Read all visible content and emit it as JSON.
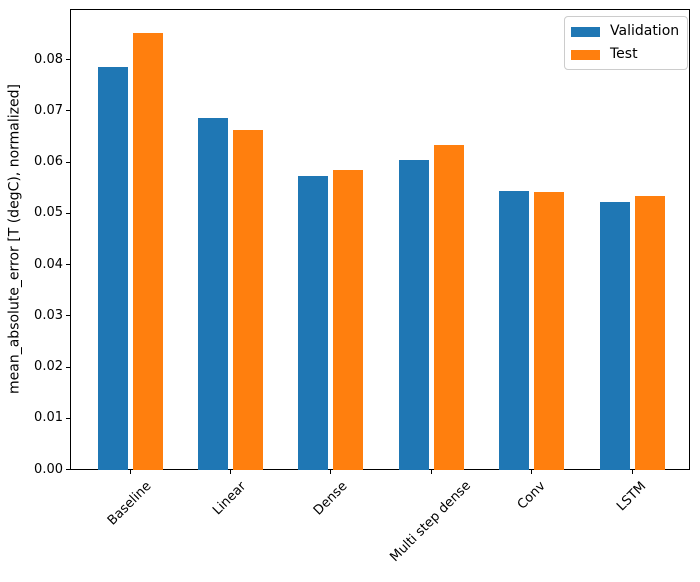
{
  "chart_data": {
    "type": "bar",
    "title": "",
    "xlabel": "",
    "ylabel": "mean_absolute_error [T (degC), normalized]",
    "categories": [
      "Baseline",
      "Linear",
      "Dense",
      "Multi step dense",
      "Conv",
      "LSTM"
    ],
    "series": [
      {
        "name": "Validation",
        "color": "#1f77b4",
        "values": [
          0.0786,
          0.0688,
          0.0573,
          0.0605,
          0.0545,
          0.0524
        ]
      },
      {
        "name": "Test",
        "color": "#ff7f0e",
        "values": [
          0.0853,
          0.0663,
          0.0585,
          0.0634,
          0.0542,
          0.0534
        ]
      }
    ],
    "ylim": [
      0,
      0.0898
    ],
    "yticks": [
      0,
      0.01,
      0.02,
      0.03,
      0.04,
      0.05,
      0.06,
      0.07,
      0.08
    ],
    "ytick_labels": [
      "0.00",
      "0.01",
      "0.02",
      "0.03",
      "0.04",
      "0.05",
      "0.06",
      "0.07",
      "0.08"
    ],
    "legend": {
      "position": "upper right"
    },
    "grid": false,
    "x_tick_rotation_deg": 45
  }
}
